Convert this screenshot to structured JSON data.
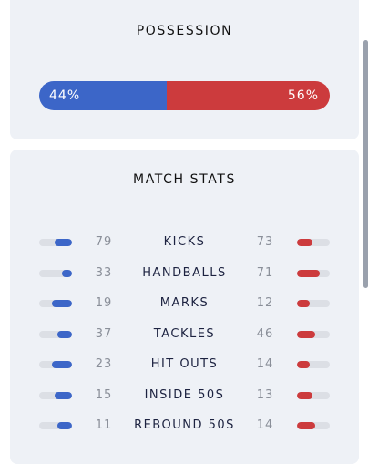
{
  "colors": {
    "home": "#3c66c8",
    "away": "#cc3b3d",
    "track": "#dcdfe5"
  },
  "possession": {
    "title": "POSSESSION",
    "home_label": "44%",
    "away_label": "56%",
    "home_fraction": 0.44
  },
  "match_stats": {
    "title": "MATCH STATS",
    "rows": [
      {
        "label": "KICKS",
        "home": "79",
        "away": "73"
      },
      {
        "label": "HANDBALLS",
        "home": "33",
        "away": "71"
      },
      {
        "label": "MARKS",
        "home": "19",
        "away": "12"
      },
      {
        "label": "TACKLES",
        "home": "37",
        "away": "46"
      },
      {
        "label": "HIT OUTS",
        "home": "23",
        "away": "14"
      },
      {
        "label": "INSIDE 50S",
        "home": "15",
        "away": "13"
      },
      {
        "label": "REBOUND 50S",
        "home": "11",
        "away": "14"
      }
    ]
  }
}
